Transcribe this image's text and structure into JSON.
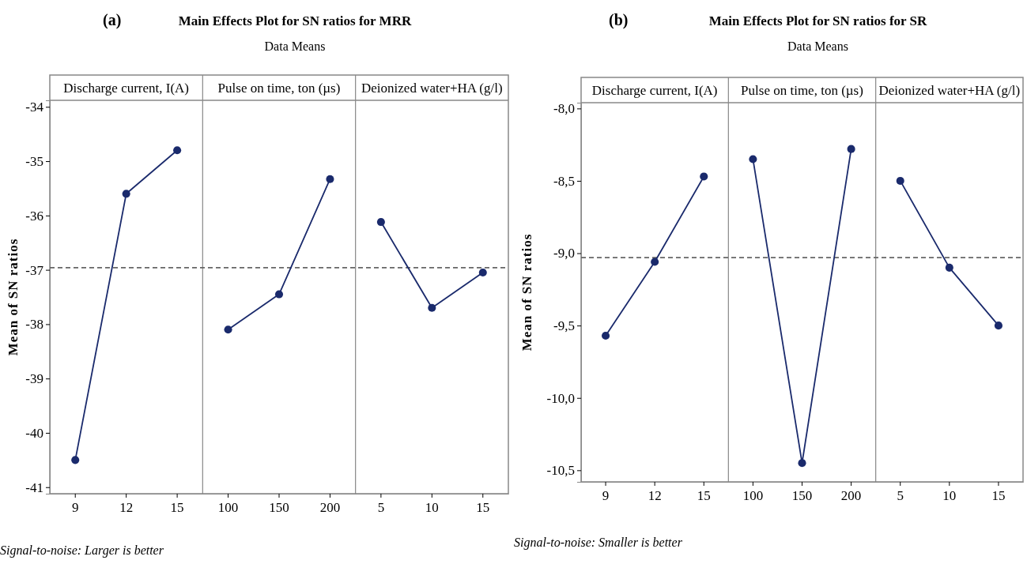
{
  "chart_data": [
    {
      "type": "line",
      "title": "Main Effects Plot for SN ratios for MRR",
      "subtitle": "Data Means",
      "ylabel": "Mean of SN ratios",
      "annotations": [
        "(a)",
        "Signal-to-noise: Larger is better",
        "Discharge current, I(A)",
        "Pulse on time, ton (µs)",
        "Deionized water+HA (g/l)"
      ],
      "categories": [
        "9",
        "12",
        "15",
        "100",
        "150",
        "200",
        "5",
        "10",
        "15"
      ],
      "series": [
        {
          "color": "#1a2a6c",
          "values": [
            -40.5,
            -35.6,
            -34.8,
            null,
            null,
            null,
            null,
            null,
            null
          ]
        },
        {
          "color": "#1a2a6c",
          "values": [
            null,
            null,
            null,
            -38.1,
            -37.45,
            -35.33,
            null,
            null,
            null
          ]
        },
        {
          "color": "#1a2a6c",
          "values": [
            null,
            null,
            null,
            null,
            null,
            null,
            -36.12,
            -37.7,
            -37.05
          ]
        }
      ],
      "ylim": [
        -41.12,
        -33.88
      ],
      "yticks": [
        -41,
        -40,
        -39,
        -38,
        -37,
        -36,
        -35,
        -34
      ],
      "ref_lines": [
        {
          "axis": "y",
          "value": -36.96,
          "color": "#666666",
          "line_style": "dashed"
        }
      ],
      "marker": "circle",
      "line_style": "solid",
      "grid": false
    },
    {
      "type": "line",
      "title": "Main Effects Plot for SN ratios for SR",
      "subtitle": "Data Means",
      "ylabel": "Mean of SN ratios",
      "annotations": [
        "(b)",
        "Signal-to-noise: Smaller is better",
        "Discharge current, I(A)",
        "Pulse on time, ton (µs)",
        "Deionized water+HA (g/l)"
      ],
      "categories": [
        "9",
        "12",
        "15",
        "100",
        "150",
        "200",
        "5",
        "10",
        "15"
      ],
      "series": [
        {
          "color": "#1a2a6c",
          "values": [
            -9.57,
            -9.06,
            -8.47,
            null,
            null,
            null,
            null,
            null,
            null
          ]
        },
        {
          "color": "#1a2a6c",
          "values": [
            null,
            null,
            null,
            -8.35,
            -10.45,
            -8.28,
            null,
            null,
            null
          ]
        },
        {
          "color": "#1a2a6c",
          "values": [
            null,
            null,
            null,
            null,
            null,
            null,
            -8.5,
            -9.1,
            -9.5
          ]
        }
      ],
      "ylim": [
        -10.58,
        -7.96
      ],
      "yticks": [
        {
          "value": -10.5,
          "label": "-10,5"
        },
        {
          "value": -10,
          "label": "-10,0"
        },
        {
          "value": -9.5,
          "label": "-9,5"
        },
        {
          "value": -9,
          "label": "-9,0"
        },
        {
          "value": -8.5,
          "label": "-8,5"
        },
        {
          "value": -8,
          "label": "-8,0"
        }
      ],
      "ref_lines": [
        {
          "axis": "y",
          "value": -9.03,
          "color": "#666666",
          "line_style": "dashed"
        }
      ],
      "marker": "circle",
      "line_style": "solid",
      "grid": false
    }
  ]
}
